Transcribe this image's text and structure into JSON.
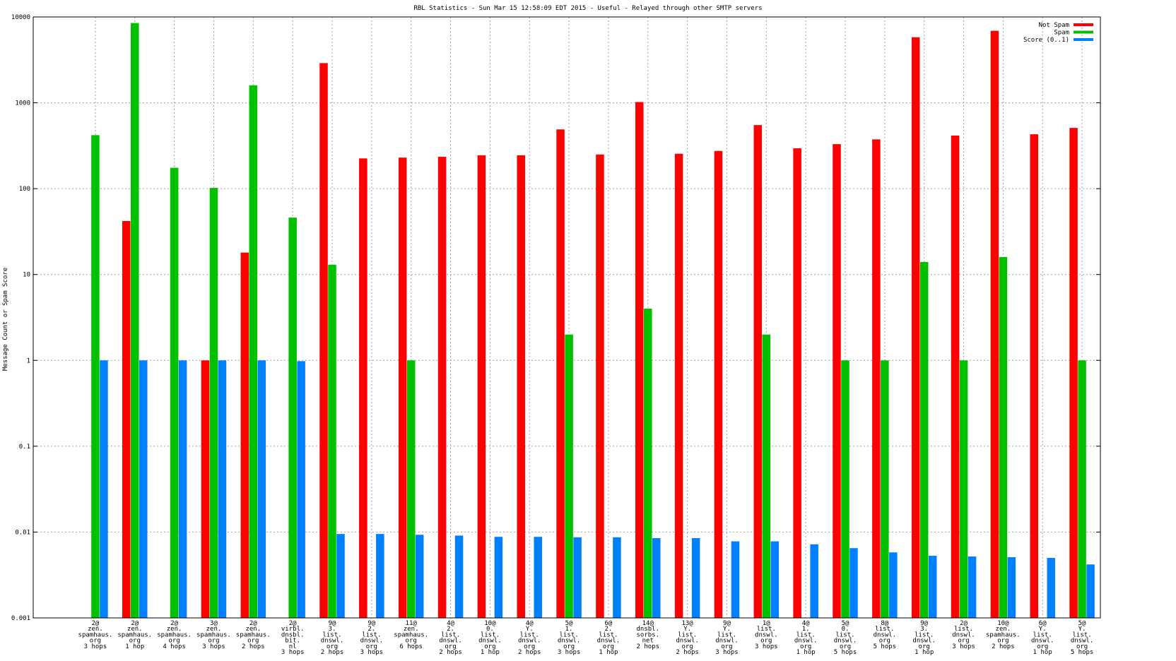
{
  "chart_data": {
    "type": "bar",
    "title": "RBL Statistics - Sun Mar 15 12:58:09 EDT 2015 - Useful - Relayed through other SMTP servers",
    "ylabel": "Message Count or Spam Score",
    "xlabel": "",
    "yscale": "log",
    "ylim": [
      0.001,
      10000
    ],
    "yticks": [
      "0.001",
      "0.01",
      "0.1",
      "1",
      "10",
      "100",
      "1000",
      "10000"
    ],
    "grid": true,
    "legend_position": "top-right",
    "categories": [
      [
        "2@",
        "zen.",
        "spamhaus.",
        "org",
        "3 hops"
      ],
      [
        "2@",
        "zen.",
        "spamhaus.",
        "org",
        "1 hop"
      ],
      [
        "2@",
        "zen.",
        "spamhaus.",
        "org",
        "4 hops"
      ],
      [
        "3@",
        "zen.",
        "spamhaus.",
        "org",
        "3 hops"
      ],
      [
        "2@",
        "zen.",
        "spamhaus.",
        "org",
        "2 hops"
      ],
      [
        "2@",
        "virbl.",
        "dnsbl.",
        "bit.",
        "nl",
        "3 hops"
      ],
      [
        "9@",
        "3.",
        "list.",
        "dnswl.",
        "org",
        "2 hops"
      ],
      [
        "9@",
        "2.",
        "list.",
        "dnswl.",
        "org",
        "3 hops"
      ],
      [
        "11@",
        "zen.",
        "spamhaus.",
        "org",
        "6 hops"
      ],
      [
        "4@",
        "2.",
        "list.",
        "dnswl.",
        "org",
        "2 hops"
      ],
      [
        "10@",
        "0.",
        "list.",
        "dnswl.",
        "org",
        "1 hop"
      ],
      [
        "4@",
        "Y.",
        "list.",
        "dnswl.",
        "org",
        "2 hops"
      ],
      [
        "5@",
        "1.",
        "list.",
        "dnswl.",
        "org",
        "3 hops"
      ],
      [
        "6@",
        "2.",
        "list.",
        "dnswl.",
        "org",
        "1 hop"
      ],
      [
        "14@",
        "dnsbl.",
        "sorbs.",
        "net",
        "2 hops"
      ],
      [
        "13@",
        "Y.",
        "list.",
        "dnswl.",
        "org",
        "2 hops"
      ],
      [
        "9@",
        "Y.",
        "list.",
        "dnswl.",
        "org",
        "3 hops"
      ],
      [
        "1@",
        "list.",
        "dnswl.",
        "org",
        "3 hops"
      ],
      [
        "4@",
        "1.",
        "list.",
        "dnswl.",
        "org",
        "1 hop"
      ],
      [
        "5@",
        "0.",
        "list.",
        "dnswl.",
        "org",
        "5 hops"
      ],
      [
        "8@",
        "list.",
        "dnswl.",
        "org",
        "5 hops"
      ],
      [
        "9@",
        "3.",
        "list.",
        "dnswl.",
        "org",
        "1 hop"
      ],
      [
        "2@",
        "list.",
        "dnswl.",
        "org",
        "3 hops"
      ],
      [
        "10@",
        "zen.",
        "spamhaus.",
        "org",
        "2 hops"
      ],
      [
        "6@",
        "Y.",
        "list.",
        "dnswl.",
        "org",
        "1 hop"
      ],
      [
        "5@",
        "Y.",
        "list.",
        "dnswl.",
        "org",
        "5 hops"
      ]
    ],
    "series": [
      {
        "name": "Not Spam",
        "color": "#ff0000",
        "values": [
          null,
          42,
          null,
          1,
          18,
          null,
          2900,
          225,
          230,
          235,
          245,
          245,
          490,
          250,
          1020,
          255,
          275,
          550,
          295,
          330,
          375,
          5800,
          415,
          6900,
          430,
          510
        ]
      },
      {
        "name": "Spam",
        "color": "#00c000",
        "values": [
          420,
          8500,
          175,
          102,
          1600,
          46,
          13,
          null,
          1,
          null,
          null,
          null,
          2,
          null,
          4,
          null,
          null,
          2,
          null,
          1,
          1,
          14,
          1,
          16,
          null,
          1
        ]
      },
      {
        "name": "Score (0..1)",
        "color": "#0080ff",
        "values": [
          1,
          1,
          1,
          1,
          1,
          0.98,
          0.0095,
          0.0095,
          0.0093,
          0.0091,
          0.0088,
          0.0088,
          0.0087,
          0.0087,
          0.0085,
          0.0085,
          0.0078,
          0.0078,
          0.0072,
          0.0065,
          0.0058,
          0.0053,
          0.0052,
          0.0051,
          0.005,
          0.0042
        ]
      }
    ]
  }
}
